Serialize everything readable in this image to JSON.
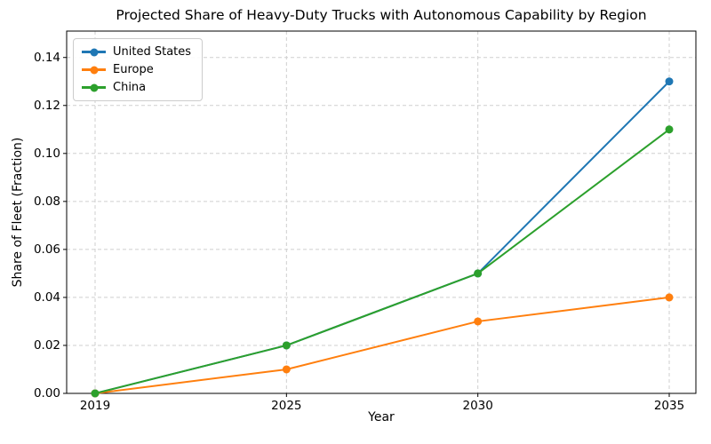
{
  "chart_data": {
    "type": "line",
    "title": "Projected Share of Heavy-Duty Trucks with Autonomous Capability by Region",
    "xlabel": "Year",
    "ylabel": "Share of Fleet (Fraction)",
    "categories": [
      "2019",
      "2025",
      "2030",
      "2035"
    ],
    "series": [
      {
        "name": "United States",
        "color": "#1f77b4",
        "values": [
          0.0,
          0.02,
          0.05,
          0.13
        ]
      },
      {
        "name": "Europe",
        "color": "#ff7f0e",
        "values": [
          0.0,
          0.01,
          0.03,
          0.04
        ]
      },
      {
        "name": "China",
        "color": "#2ca02c",
        "values": [
          0.0,
          0.02,
          0.05,
          0.11
        ]
      }
    ],
    "yticks": [
      0.0,
      0.02,
      0.04,
      0.06,
      0.08,
      0.1,
      0.12,
      0.14
    ],
    "ytick_labels": [
      "0.00",
      "0.02",
      "0.04",
      "0.06",
      "0.08",
      "0.10",
      "0.12",
      "0.14"
    ],
    "ylim": [
      0,
      0.151
    ],
    "x_spacing": "equal",
    "grid": {
      "visible": true,
      "style": "dashed",
      "color": "#cfcfcf"
    },
    "legend": {
      "position": "upper-left"
    },
    "marker": "circle"
  }
}
